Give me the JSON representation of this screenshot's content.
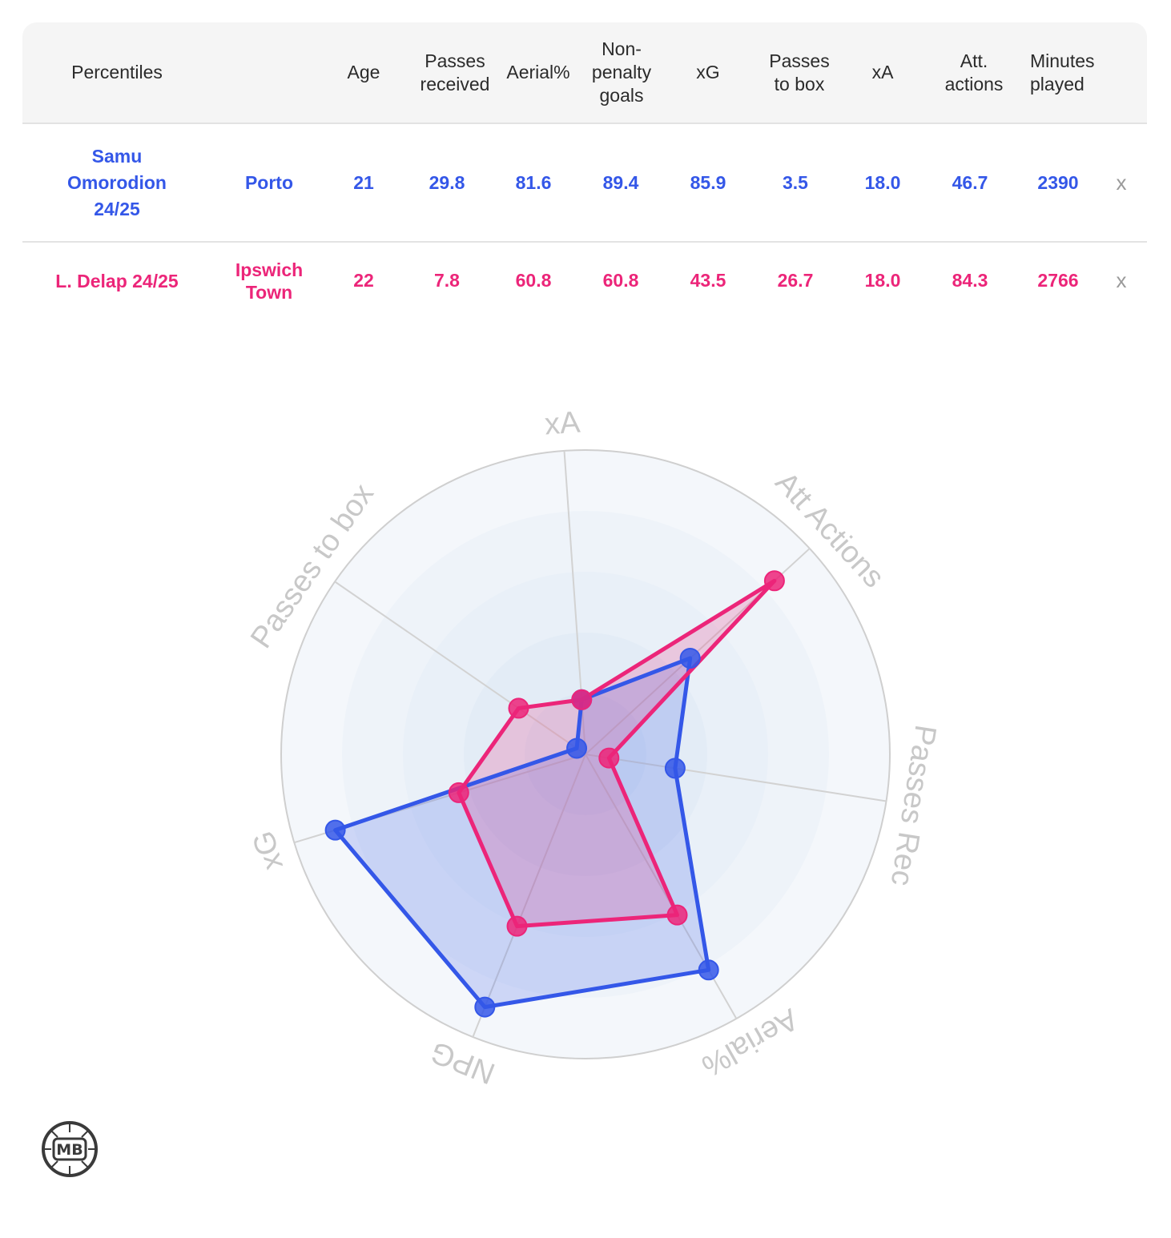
{
  "table": {
    "headers": [
      {
        "key": "percentiles",
        "label": "Percentiles"
      },
      {
        "key": "team",
        "label": ""
      },
      {
        "key": "age",
        "label": "Age"
      },
      {
        "key": "passes_received",
        "label": "Passes\nreceived"
      },
      {
        "key": "aerial",
        "label": "Aerial%"
      },
      {
        "key": "npg",
        "label": "Non-\npenalty\ngoals"
      },
      {
        "key": "xg",
        "label": "xG"
      },
      {
        "key": "passes_to_box",
        "label": "Passes\nto box"
      },
      {
        "key": "xa",
        "label": "xA"
      },
      {
        "key": "att_actions",
        "label": "Att.\nactions"
      },
      {
        "key": "minutes",
        "label": "Minutes\nplayed"
      }
    ],
    "rows": [
      {
        "player": "Samu\nOmorodion\n24/25",
        "team": "Porto",
        "age": "21",
        "passes_received": "29.8",
        "aerial": "81.6",
        "npg": "89.4",
        "xg": "85.9",
        "passes_to_box": "3.5",
        "xa": "18.0",
        "att_actions": "46.7",
        "minutes": "2390",
        "remove": "x",
        "color": "#3457e8"
      },
      {
        "player": "L. Delap 24/25",
        "team": "Ipswich\nTown",
        "age": "22",
        "passes_received": "7.8",
        "aerial": "60.8",
        "npg": "60.8",
        "xg": "43.5",
        "passes_to_box": "26.7",
        "xa": "18.0",
        "att_actions": "84.3",
        "minutes": "2766",
        "remove": "x",
        "color": "#ec2579"
      }
    ]
  },
  "chart_data": {
    "type": "radar",
    "axes": [
      "xA",
      "Att Actions",
      "Passes Rec",
      "Aerial%",
      "NPG",
      "xG",
      "Passes to box"
    ],
    "range": [
      0,
      100
    ],
    "rings": 4,
    "series": [
      {
        "name": "Samu Omorodion 24/25",
        "color": "#3457e8",
        "values": [
          18.0,
          46.7,
          29.8,
          81.6,
          89.4,
          85.9,
          3.5
        ]
      },
      {
        "name": "L. Delap 24/25",
        "color": "#ec2579",
        "values": [
          18.0,
          84.3,
          7.8,
          60.8,
          60.8,
          43.5,
          26.7
        ]
      }
    ]
  },
  "logo": {
    "text": "MB"
  }
}
